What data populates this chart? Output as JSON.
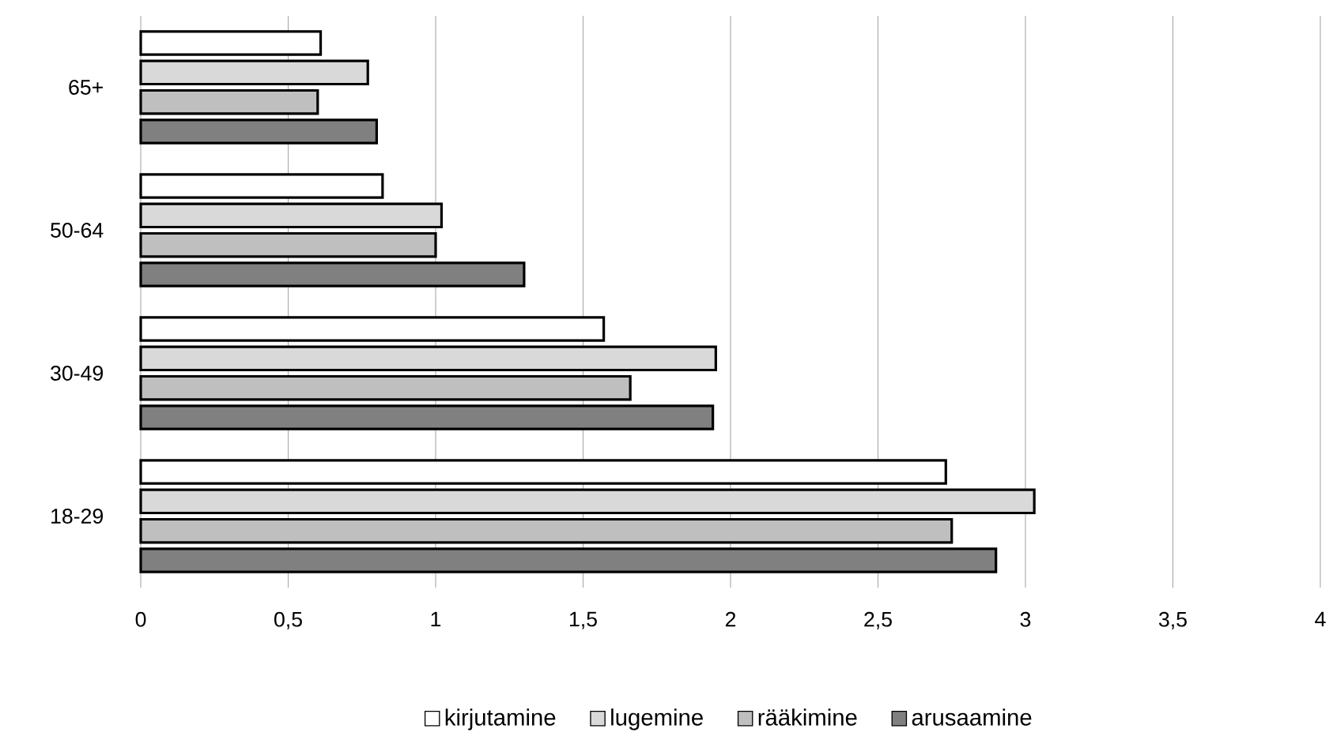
{
  "chart_data": {
    "type": "bar",
    "orientation": "horizontal",
    "categories": [
      "65+",
      "50-64",
      "30-49",
      "18-29"
    ],
    "series": [
      {
        "name": "kirjutamine",
        "color": "#ffffff",
        "values": [
          0.61,
          0.82,
          1.57,
          2.73
        ]
      },
      {
        "name": "lugemine",
        "color": "#d9d9d9",
        "values": [
          0.77,
          1.02,
          1.95,
          3.03
        ]
      },
      {
        "name": "rääkimine",
        "color": "#bfbfbf",
        "values": [
          0.6,
          1.0,
          1.66,
          2.75
        ]
      },
      {
        "name": "arusaamine",
        "color": "#808080",
        "values": [
          0.8,
          1.3,
          1.94,
          2.9
        ]
      }
    ],
    "xlim": [
      0,
      4
    ],
    "xticks": [
      0,
      {
        "value": 0.5,
        "label": "0,5"
      },
      1,
      {
        "value": 1.5,
        "label": "1,5"
      },
      2,
      {
        "value": 2.5,
        "label": "2,5"
      },
      3,
      {
        "value": 3.5,
        "label": "3,5"
      },
      4
    ],
    "grid": "x",
    "legend": "bottom"
  }
}
